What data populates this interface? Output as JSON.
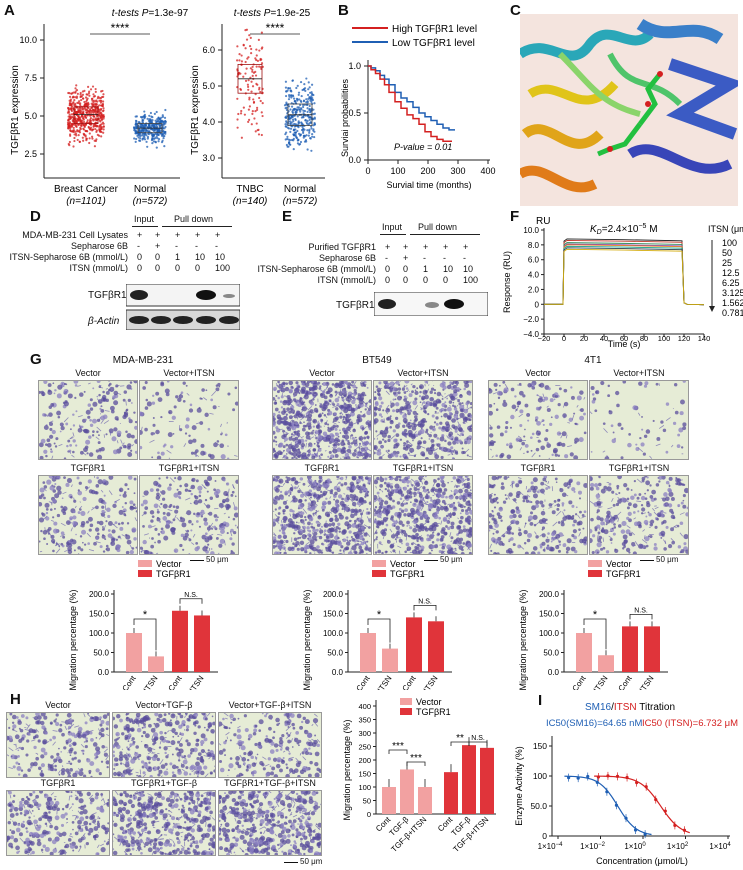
{
  "panels": {
    "A": {
      "label": "A",
      "left": {
        "title_prefix": "t-tests ",
        "title_p": "P",
        "title_val": "=1.3e-97",
        "ylabel": "TGFβR1 expression",
        "yticks": [
          "10.0",
          "7.5",
          "5.0",
          "2.5"
        ],
        "sig": "****",
        "groups": [
          {
            "name": "Breast Cancer",
            "n": "(n=1101)",
            "color": "#d42020",
            "median": 5.1,
            "q1": 4.5,
            "q3": 5.6
          },
          {
            "name": "Normal",
            "n": "(n=572)",
            "color": "#1f5fb4",
            "median": 4.2,
            "q1": 3.9,
            "q3": 4.5
          }
        ]
      },
      "right": {
        "title_prefix": "t-tests ",
        "title_p": "P",
        "title_val": "=1.9e-25",
        "ylabel": "TGFβR1 expression",
        "yticks": [
          "6.0",
          "5.0",
          "4.0",
          "3.0"
        ],
        "sig": "****",
        "groups": [
          {
            "name": "TNBC",
            "n": "(n=140)",
            "color": "#d42020",
            "median": 5.2,
            "q1": 4.8,
            "q3": 5.6
          },
          {
            "name": "Normal",
            "n": "(n=572)",
            "color": "#1f5fb4",
            "median": 4.2,
            "q1": 3.9,
            "q3": 4.5
          }
        ]
      }
    },
    "B": {
      "label": "B",
      "legend": [
        "High TGFβR1 level",
        "Low TGFβR1 level"
      ],
      "colors": [
        "#d42020",
        "#1f5fb4"
      ],
      "ylabel": "Surviai probabilities",
      "xlabel": "Survial time (months)",
      "yticks": [
        "1.0",
        "0.5",
        "0.0"
      ],
      "xticks": [
        "0",
        "100",
        "200",
        "300",
        "400"
      ],
      "pvalue": "P-value = 0.01"
    },
    "C": {
      "label": "C"
    },
    "D": {
      "label": "D",
      "header_input": "Input",
      "header_pull": "Pull down",
      "rows": [
        {
          "name": "MDA-MB-231 Cell Lysates",
          "vals": [
            "+",
            "+",
            "+",
            "+",
            "+"
          ]
        },
        {
          "name": "Sepharose 6B",
          "vals": [
            "-",
            "+",
            "-",
            "-",
            "-"
          ]
        },
        {
          "name": "ITSN-Sepharose 6B (mmol/L)",
          "vals": [
            "0",
            "0",
            "1",
            "10",
            "10"
          ]
        },
        {
          "name": "ITSN (mmol/L)",
          "vals": [
            "0",
            "0",
            "0",
            "0",
            "100"
          ]
        }
      ],
      "blots": [
        "TGFβR1",
        "β-Actin"
      ]
    },
    "E": {
      "label": "E",
      "header_input": "Input",
      "header_pull": "Pull down",
      "rows": [
        {
          "name": "Purified TGFβR1",
          "vals": [
            "+",
            "+",
            "+",
            "+",
            "+"
          ]
        },
        {
          "name": "Sepharose 6B",
          "vals": [
            "-",
            "+",
            "-",
            "-",
            "-"
          ]
        },
        {
          "name": "ITSN-Sepharose 6B (mmol/L)",
          "vals": [
            "0",
            "0",
            "1",
            "10",
            "10"
          ]
        },
        {
          "name": "ITSN (mmol/L)",
          "vals": [
            "0",
            "0",
            "0",
            "0",
            "100"
          ]
        }
      ],
      "blots": [
        "TGFβR1"
      ]
    },
    "F": {
      "label": "F",
      "ru": "RU",
      "kd": "KD=2.4×10−5 M",
      "kd_main": "K",
      "kd_sub": "D",
      "kd_rest": "=2.4×10",
      "kd_exp": "−5",
      "kd_unit": " M",
      "ylabel": "Response (RU)",
      "xlabel": "Time (s)",
      "yticks": [
        "10.0",
        "8.0",
        "6.0",
        "4.0",
        "2.0",
        "0",
        "−2.0",
        "−4.0"
      ],
      "xticks": [
        "−20",
        "0",
        "20",
        "40",
        "60",
        "80",
        "100",
        "120",
        "140"
      ],
      "conc_title": "ITSN (μmol/L)",
      "conc": [
        "100",
        "50",
        "25",
        "12.5",
        "6.25",
        "3.125",
        "1.5625",
        "0.78125"
      ],
      "line_colors": [
        "#222222",
        "#c0392b",
        "#2e8b57",
        "#8e44ad",
        "#e67e22",
        "#16a085",
        "#2c3e50",
        "#d4ac0d"
      ]
    },
    "G": {
      "label": "G",
      "scale": "50 μm",
      "legend": [
        "Vector",
        "TGFβR1"
      ],
      "legend_colors": [
        "#f2a1a1",
        "#e0343a"
      ],
      "ylabel": "Migration percentage (%)",
      "yticks": [
        "200.0",
        "150.0",
        "100.0",
        "50.0",
        "0.0"
      ],
      "xticks": [
        "Cont",
        "ITSN",
        "Cont",
        "ITSN"
      ],
      "sig1": "*",
      "sig2": "N.S.",
      "cells": [
        {
          "title": "MDA-MB-231",
          "caps": [
            "Vector",
            "Vector+ITSN",
            "TGFβR1",
            "TGFβR1+ITSN"
          ],
          "bars": [
            100,
            40,
            157,
            145
          ]
        },
        {
          "title": "BT549",
          "caps": [
            "Vector",
            "Vector+ITSN",
            "TGFβR1",
            "TGFβR1+ITSN"
          ],
          "bars": [
            100,
            60,
            140,
            130
          ]
        },
        {
          "title": "4T1",
          "caps": [
            "Vector",
            "Vector+ITSN",
            "TGFβR1",
            "TGFβR1+ITSN"
          ],
          "bars": [
            100,
            43,
            117,
            117
          ]
        }
      ]
    },
    "H": {
      "label": "H",
      "scale": "50 μm",
      "caps": [
        "Vector",
        "Vector+TGF-β",
        "Vector+TGF-β+ITSN",
        "TGFβR1",
        "TGFβR1+TGF-β",
        "TGFβR1+TGF-β+ITSN"
      ],
      "legend": [
        "Vector",
        "TGFβR1"
      ],
      "ylabel": "Migration percentage (%)",
      "yticks": [
        "400",
        "350",
        "300",
        "250",
        "200",
        "150",
        "100",
        "50",
        "0"
      ],
      "xticks": [
        "Cont",
        "TGF-β",
        "TGF-β+ITSN",
        "Cont",
        "TGF-β",
        "TGF-β+ITSN"
      ],
      "bars": [
        100,
        165,
        100,
        155,
        255,
        245
      ],
      "sig": [
        "***",
        "***",
        "**",
        "N.S."
      ]
    },
    "I": {
      "label": "I",
      "title_a": "SM16",
      "title_sep": "/",
      "title_b": "ITSN",
      "title_rest": " Titration",
      "ic_a": "IC50(SM16)=64.65 nM",
      "ic_b": "IC50 (ITSN)=6.732 μM",
      "ylabel": "Enzyme Activity (%)",
      "xlabel": "Concentration (μmol/L)",
      "yticks": [
        "150",
        "100",
        "50.0",
        "0"
      ],
      "xticks": [
        "1×10−4",
        "1×10−2",
        "1×100",
        "1×102",
        "1×104"
      ],
      "colors": [
        "#1f5fb4",
        "#d42020"
      ]
    }
  }
}
